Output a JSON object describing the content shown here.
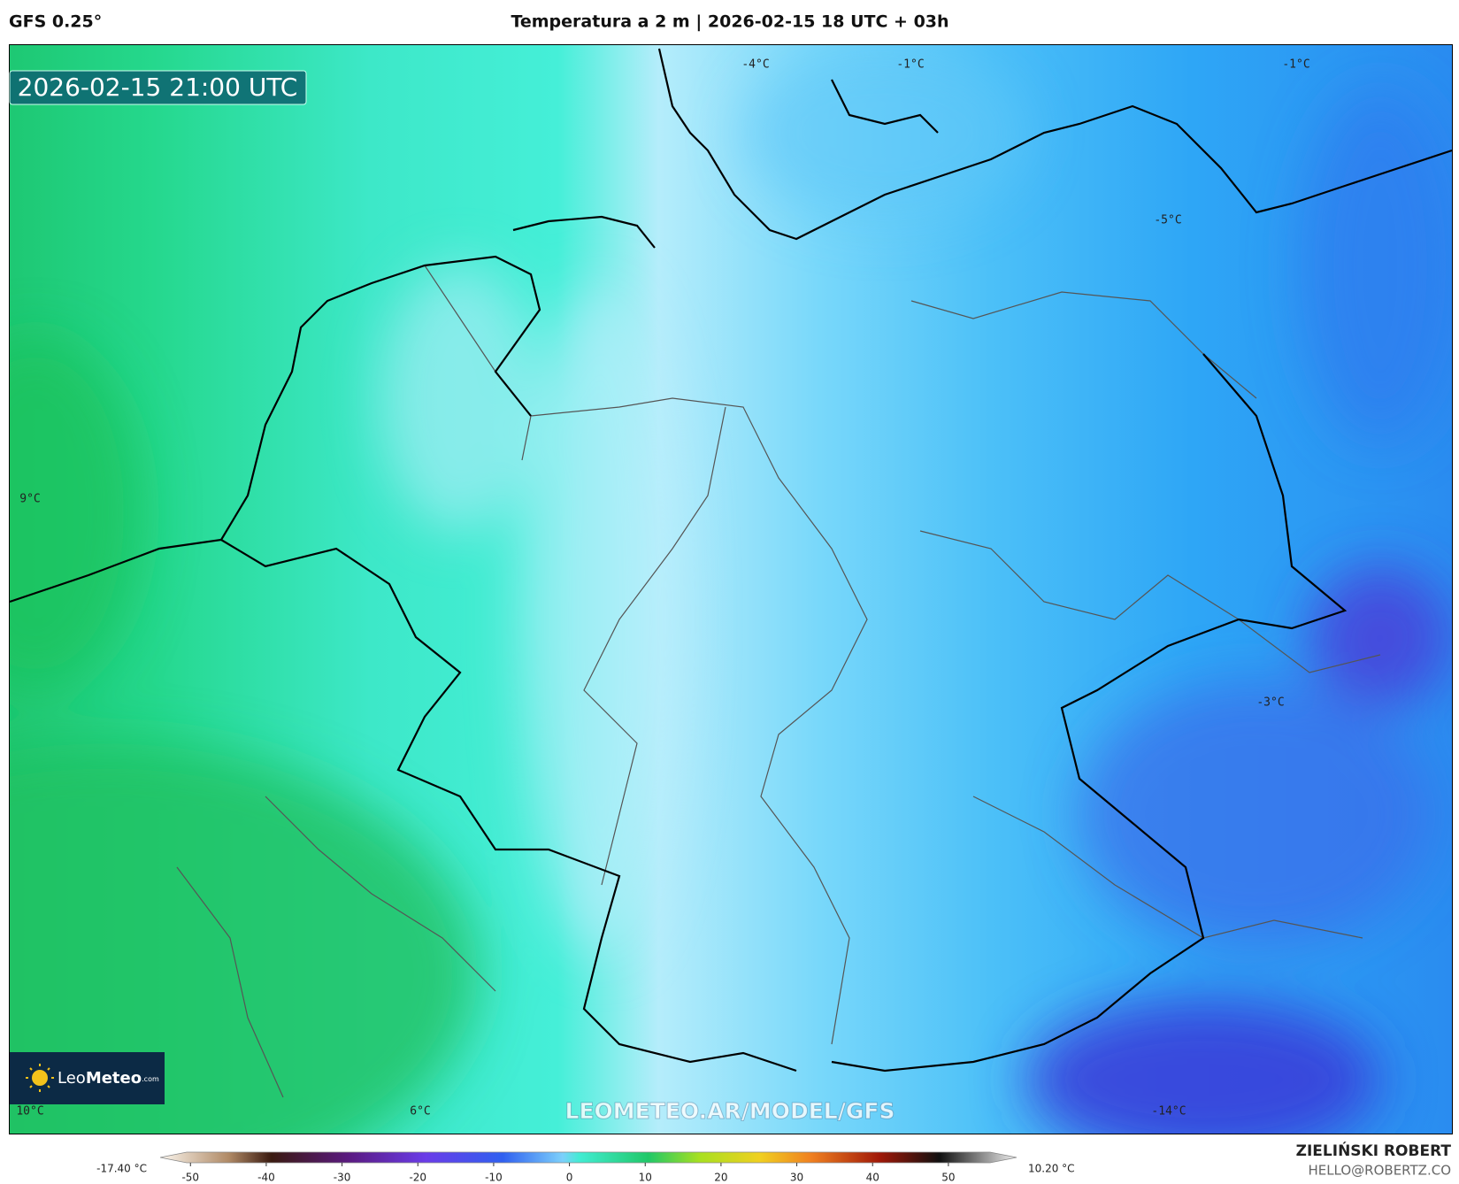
{
  "header": {
    "model": "GFS 0.25°",
    "title": "Temperatura a 2 m | 2026-02-15 18 UTC + 03h"
  },
  "map": {
    "valid_time": "2026-02-15 21:00 UTC",
    "labels": [
      "-4°C",
      "-1°C",
      "-1°C",
      "-5°C",
      "9°C",
      "-3°C",
      "10°C",
      "6°C",
      "-14°C"
    ],
    "watermark": "LEOMETEO.AR/MODEL/GFS",
    "logo": {
      "name": "Leo",
      "name_bold": "Meteo",
      "suffix": ".com"
    }
  },
  "colorbar": {
    "lim": [
      -54,
      59
    ],
    "ticks": [
      -50,
      -40,
      -30,
      -20,
      -10,
      0,
      10,
      20,
      30,
      40,
      50
    ],
    "min_label": "-17.40 °C",
    "max_label": "10.20 °C"
  },
  "credits": {
    "author": "ZIELIŃSKI ROBERT",
    "email": "HELLO@ROBERTZ.CO"
  }
}
